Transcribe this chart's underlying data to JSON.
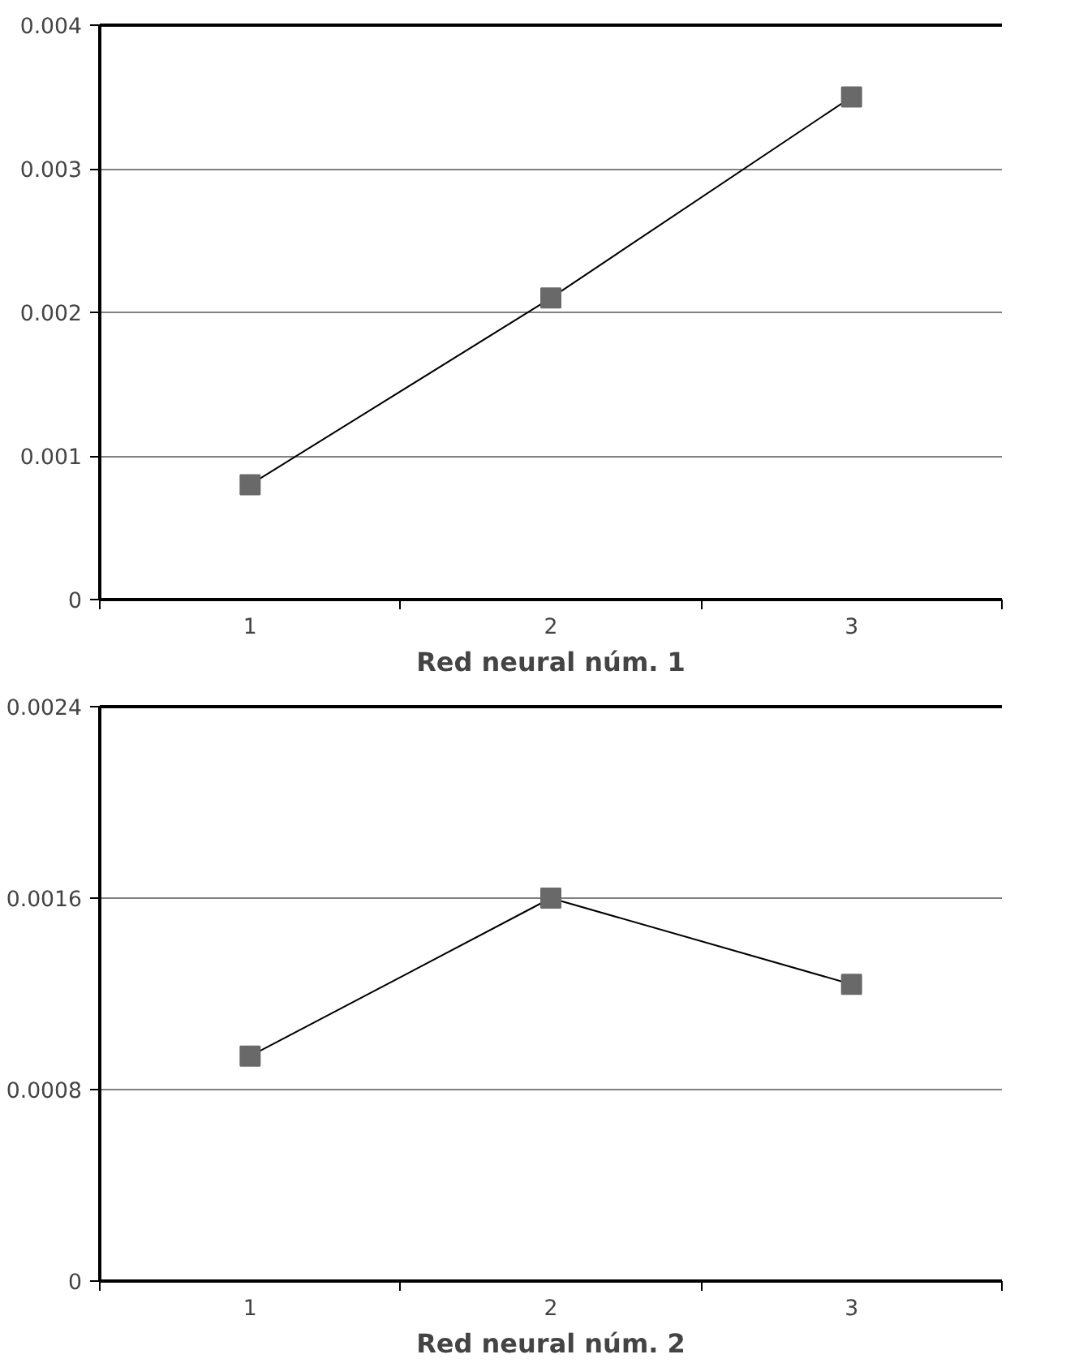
{
  "chart_data": [
    {
      "type": "line",
      "xlabel": "Red neural núm. 1",
      "categories": [
        "1",
        "2",
        "3"
      ],
      "series": [
        {
          "color": "#696969",
          "values": [
            0.0008,
            0.0021,
            0.0035
          ]
        }
      ],
      "ylim": [
        0,
        0.004
      ],
      "yticks": [
        0,
        0.001,
        0.002,
        0.003,
        0.004
      ],
      "grid": "y",
      "marker": "square",
      "line_style": "solid"
    },
    {
      "type": "line",
      "xlabel": "Red neural núm. 2",
      "categories": [
        "1",
        "2",
        "3"
      ],
      "series": [
        {
          "color": "#696969",
          "values": [
            0.00094,
            0.0016,
            0.00124
          ]
        }
      ],
      "ylim": [
        0,
        0.0024
      ],
      "yticks": [
        0,
        0.0008,
        0.0016,
        0.0024
      ],
      "grid": "y",
      "marker": "square",
      "line_style": "solid"
    }
  ]
}
